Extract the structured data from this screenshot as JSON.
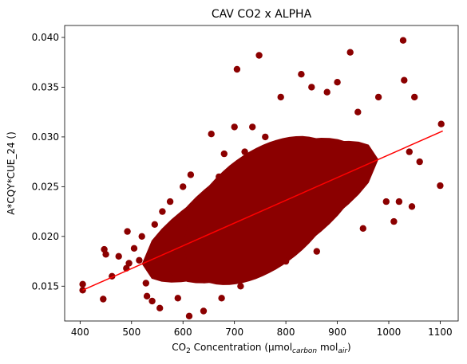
{
  "chart_data": {
    "type": "scatter",
    "title": "CAV CO2 x ALPHA",
    "xlabel": {
      "prefix": "CO",
      "prefix_sub": "2",
      "main": " Concentration (μmol",
      "sub1": "carbon",
      "mid": " mol",
      "sub2": "air",
      "suffix": ")"
    },
    "ylabel": "A*CQY*CUE_24 ()",
    "xlim": [
      370,
      1135
    ],
    "ylim": [
      0.0115,
      0.0412
    ],
    "xticks": [
      400,
      500,
      600,
      700,
      800,
      900,
      1000,
      1100
    ],
    "yticks": [
      0.015,
      0.02,
      0.025,
      0.03,
      0.035,
      0.04
    ],
    "ytick_labels": [
      "0.015",
      "0.020",
      "0.025",
      "0.030",
      "0.035",
      "0.040"
    ],
    "grid": false,
    "colors": {
      "points": "#8b0000",
      "fit_line": "#ff0000"
    },
    "fit_line": {
      "x": [
        405,
        1105
      ],
      "y": [
        0.0146,
        0.0306
      ]
    },
    "series": [
      {
        "points": [
          [
            405,
            0.0146
          ],
          [
            405,
            0.0152
          ],
          [
            445,
            0.0137
          ],
          [
            447,
            0.0187
          ],
          [
            450,
            0.0182
          ],
          [
            462,
            0.016
          ],
          [
            475,
            0.018
          ],
          [
            490,
            0.0168
          ],
          [
            492,
            0.0205
          ],
          [
            495,
            0.0173
          ],
          [
            505,
            0.0188
          ],
          [
            515,
            0.0176
          ],
          [
            520,
            0.02
          ],
          [
            528,
            0.0153
          ],
          [
            530,
            0.014
          ],
          [
            540,
            0.0135
          ],
          [
            545,
            0.0212
          ],
          [
            555,
            0.0128
          ],
          [
            560,
            0.0225
          ],
          [
            575,
            0.0235
          ],
          [
            590,
            0.0138
          ],
          [
            600,
            0.025
          ],
          [
            612,
            0.012
          ],
          [
            615,
            0.0262
          ],
          [
            640,
            0.0125
          ],
          [
            655,
            0.0303
          ],
          [
            670,
            0.026
          ],
          [
            675,
            0.0138
          ],
          [
            680,
            0.0283
          ],
          [
            700,
            0.031
          ],
          [
            705,
            0.0368
          ],
          [
            712,
            0.015
          ],
          [
            720,
            0.0285
          ],
          [
            735,
            0.031
          ],
          [
            748,
            0.0382
          ],
          [
            760,
            0.03
          ],
          [
            790,
            0.034
          ],
          [
            800,
            0.0175
          ],
          [
            830,
            0.0363
          ],
          [
            850,
            0.035
          ],
          [
            860,
            0.0185
          ],
          [
            880,
            0.0345
          ],
          [
            900,
            0.0355
          ],
          [
            925,
            0.0385
          ],
          [
            940,
            0.0325
          ],
          [
            950,
            0.0208
          ],
          [
            980,
            0.034
          ],
          [
            995,
            0.0235
          ],
          [
            1010,
            0.0215
          ],
          [
            1020,
            0.0235
          ],
          [
            1028,
            0.0397
          ],
          [
            1030,
            0.0357
          ],
          [
            1040,
            0.0285
          ],
          [
            1045,
            0.023
          ],
          [
            1050,
            0.034
          ],
          [
            1060,
            0.0275
          ],
          [
            1100,
            0.0251
          ],
          [
            1102,
            0.0313
          ]
        ]
      }
    ]
  }
}
